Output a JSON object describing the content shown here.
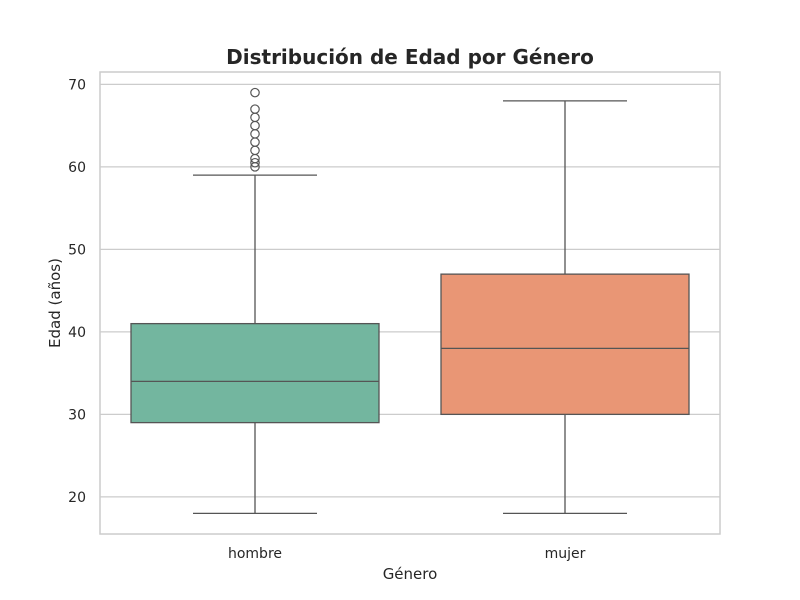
{
  "chart_data": {
    "type": "box",
    "title": "Distribución de Edad por Género",
    "xlabel": "Género",
    "ylabel": "Edad (años)",
    "ylim": [
      15.5,
      71.5
    ],
    "yticks": [
      20,
      30,
      40,
      50,
      60,
      70
    ],
    "grid": true,
    "categories": [
      "hombre",
      "mujer"
    ],
    "boxes": [
      {
        "category": "hombre",
        "color": "#73b69f",
        "whisker_low": 18,
        "q1": 29,
        "median": 34,
        "q3": 41,
        "whisker_high": 59,
        "outliers": [
          60,
          60.5,
          61,
          62,
          63,
          64,
          65,
          66,
          67,
          69
        ]
      },
      {
        "category": "mujer",
        "color": "#e99675",
        "whisker_low": 18,
        "q1": 30,
        "median": 38,
        "q3": 47,
        "whisker_high": 68,
        "outliers": []
      }
    ]
  }
}
